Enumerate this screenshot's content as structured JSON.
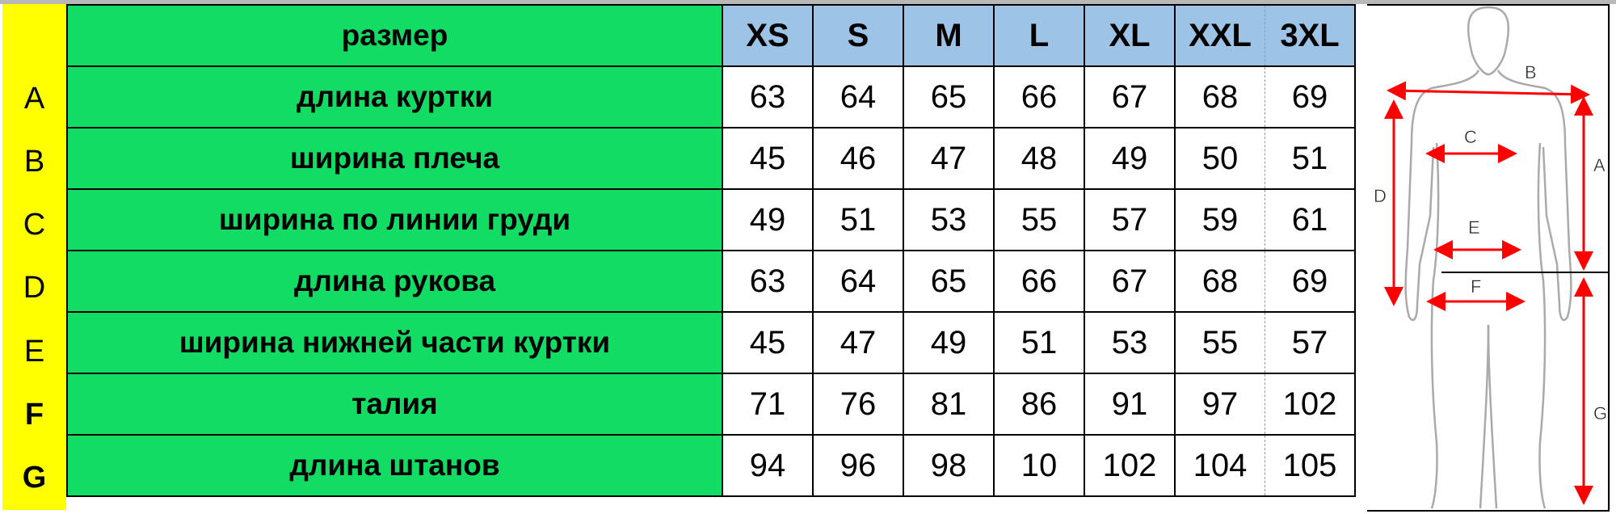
{
  "row_letters": [
    "A",
    "B",
    "C",
    "D",
    "E",
    "F",
    "G"
  ],
  "header": {
    "label": "размер",
    "sizes": [
      "XS",
      "S",
      "M",
      "L",
      "XL",
      "XXL",
      "3XL"
    ]
  },
  "rows": [
    {
      "label": "длина куртки",
      "values": [
        "63",
        "64",
        "65",
        "66",
        "67",
        "68",
        "69"
      ]
    },
    {
      "label": "ширина плеча",
      "values": [
        "45",
        "46",
        "47",
        "48",
        "49",
        "50",
        "51"
      ]
    },
    {
      "label": "ширина по линии груди",
      "values": [
        "49",
        "51",
        "53",
        "55",
        "57",
        "59",
        "61"
      ]
    },
    {
      "label": "длина рукова",
      "values": [
        "63",
        "64",
        "65",
        "66",
        "67",
        "68",
        "69"
      ]
    },
    {
      "label": "ширина нижней части куртки",
      "values": [
        "45",
        "47",
        "49",
        "51",
        "53",
        "55",
        "57"
      ]
    },
    {
      "label": "талия",
      "values": [
        "71",
        "76",
        "81",
        "86",
        "91",
        "97",
        "102"
      ]
    },
    {
      "label": "длина штанов",
      "values": [
        "94",
        "96",
        "98",
        "10",
        "102",
        "104",
        "105"
      ]
    }
  ],
  "figure": {
    "labels": {
      "A": "A",
      "B": "B",
      "C": "C",
      "D": "D",
      "E": "E",
      "F": "F",
      "G": "G"
    }
  },
  "colors": {
    "label_bg": "#12dc64",
    "letter_bg": "#ffff00",
    "header_bg": "#9dc3e6",
    "arrow": "#ff0000"
  }
}
